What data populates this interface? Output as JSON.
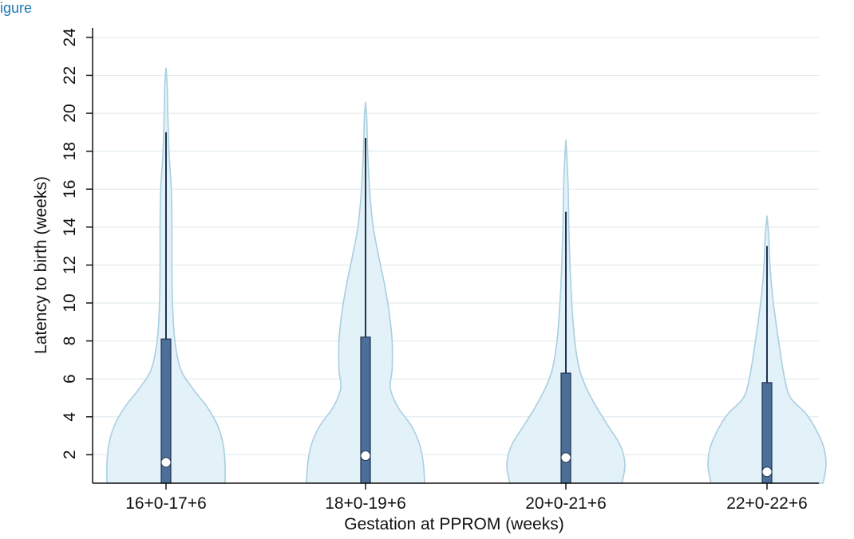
{
  "header_fragment": "igure",
  "chart_data": {
    "type": "violin",
    "title": "",
    "xlabel": "Gestation at PPROM (weeks)",
    "ylabel": "Latency to birth (weeks)",
    "categories": [
      "16+0-17+6",
      "18+0-19+6",
      "20+0-21+6",
      "22+0-22+6"
    ],
    "ylim": [
      0.5,
      24.5
    ],
    "yticks": [
      2,
      4,
      6,
      8,
      10,
      12,
      14,
      16,
      18,
      20,
      22,
      24
    ],
    "grid": true,
    "colors": {
      "violin_fill": "#e3f1f8",
      "violin_stroke": "#a9cfe0",
      "box_fill": "#4b6f99",
      "box_stroke": "#1f3350",
      "whisker": "#1f3350",
      "median_fill": "#ffffff",
      "grid": "#dde7ee",
      "axis": "#111111"
    },
    "series": [
      {
        "category": "16+0-17+6",
        "median": 1.6,
        "q1": 0.5,
        "q3": 8.1,
        "whisker_low": 0.5,
        "whisker_high": 19.0,
        "density": [
          [
            0.5,
            1.0
          ],
          [
            1.5,
            1.0
          ],
          [
            2.5,
            0.97
          ],
          [
            3.5,
            0.88
          ],
          [
            4.5,
            0.7
          ],
          [
            5.5,
            0.45
          ],
          [
            6.5,
            0.25
          ],
          [
            8,
            0.15
          ],
          [
            10,
            0.11
          ],
          [
            12,
            0.1
          ],
          [
            14,
            0.1
          ],
          [
            16,
            0.09
          ],
          [
            17,
            0.07
          ],
          [
            18,
            0.05
          ],
          [
            20,
            0.03
          ],
          [
            21.5,
            0.02
          ],
          [
            22.4,
            0.0
          ]
        ]
      },
      {
        "category": "18+0-19+6",
        "median": 1.95,
        "q1": 0.5,
        "q3": 8.2,
        "whisker_low": 0.5,
        "whisker_high": 18.7,
        "density": [
          [
            0.5,
            1.0
          ],
          [
            1.5,
            0.98
          ],
          [
            2.5,
            0.92
          ],
          [
            3.5,
            0.78
          ],
          [
            4.5,
            0.55
          ],
          [
            5.5,
            0.42
          ],
          [
            6.5,
            0.45
          ],
          [
            8,
            0.45
          ],
          [
            9.5,
            0.4
          ],
          [
            11,
            0.32
          ],
          [
            12.5,
            0.22
          ],
          [
            14,
            0.13
          ],
          [
            15.5,
            0.08
          ],
          [
            17,
            0.05
          ],
          [
            18.5,
            0.03
          ],
          [
            19.8,
            0.02
          ],
          [
            20.6,
            0.0
          ]
        ]
      },
      {
        "category": "20+0-21+6",
        "median": 1.85,
        "q1": 0.5,
        "q3": 6.3,
        "whisker_low": 0.5,
        "whisker_high": 14.8,
        "density": [
          [
            0.5,
            0.95
          ],
          [
            1.5,
            1.0
          ],
          [
            2.5,
            0.92
          ],
          [
            3.5,
            0.72
          ],
          [
            4.5,
            0.52
          ],
          [
            5.5,
            0.35
          ],
          [
            6.5,
            0.23
          ],
          [
            8,
            0.15
          ],
          [
            10,
            0.1
          ],
          [
            12,
            0.07
          ],
          [
            14,
            0.05
          ],
          [
            16,
            0.04
          ],
          [
            17.5,
            0.02
          ],
          [
            18.6,
            0.0
          ]
        ]
      },
      {
        "category": "22+0-22+6",
        "median": 1.1,
        "q1": 0.5,
        "q3": 5.8,
        "whisker_low": 0.5,
        "whisker_high": 13.0,
        "density": [
          [
            0.5,
            0.95
          ],
          [
            1.5,
            1.0
          ],
          [
            2.5,
            0.95
          ],
          [
            3.5,
            0.8
          ],
          [
            4.2,
            0.65
          ],
          [
            5,
            0.4
          ],
          [
            6,
            0.3
          ],
          [
            7.5,
            0.22
          ],
          [
            9,
            0.15
          ],
          [
            10.5,
            0.09
          ],
          [
            12,
            0.05
          ],
          [
            13.5,
            0.03
          ],
          [
            14.6,
            0.0
          ]
        ]
      }
    ]
  }
}
